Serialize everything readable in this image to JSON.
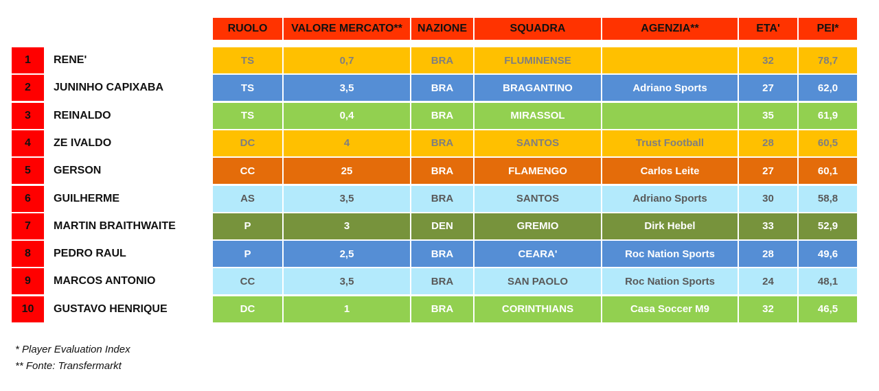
{
  "table": {
    "headers": [
      "RUOLO",
      "VALORE MERCATO**",
      "NAZIONE",
      "SQUADRA",
      "AGENZIA**",
      "ETA'",
      "PEI*"
    ],
    "rows": [
      {
        "rank": "1",
        "name": "RENE'",
        "ruolo": "TS",
        "valore": "0,7",
        "nazione": "BRA",
        "squadra": "FLUMINENSE",
        "agenzia": "",
        "eta": "32",
        "pei": "78,7",
        "bg": "#ffc000",
        "fg": "#7f7f7f"
      },
      {
        "rank": "2",
        "name": "JUNINHO CAPIXABA",
        "ruolo": "TS",
        "valore": "3,5",
        "nazione": "BRA",
        "squadra": "BRAGANTINO",
        "agenzia": "Adriano Sports",
        "eta": "27",
        "pei": "62,0",
        "bg": "#558ed5",
        "fg": "#ffffff"
      },
      {
        "rank": "3",
        "name": "REINALDO",
        "ruolo": "TS",
        "valore": "0,4",
        "nazione": "BRA",
        "squadra": "MIRASSOL",
        "agenzia": "",
        "eta": "35",
        "pei": "61,9",
        "bg": "#92d050",
        "fg": "#ffffff"
      },
      {
        "rank": "4",
        "name": "ZE IVALDO",
        "ruolo": "DC",
        "valore": "4",
        "nazione": "BRA",
        "squadra": "SANTOS",
        "agenzia": "Trust Football",
        "eta": "28",
        "pei": "60,5",
        "bg": "#ffc000",
        "fg": "#7f7f7f"
      },
      {
        "rank": "5",
        "name": "GERSON",
        "ruolo": "CC",
        "valore": "25",
        "nazione": "BRA",
        "squadra": "FLAMENGO",
        "agenzia": "Carlos Leite",
        "eta": "27",
        "pei": "60,1",
        "bg": "#e46c0a",
        "fg": "#ffffff"
      },
      {
        "rank": "6",
        "name": "GUILHERME",
        "ruolo": "AS",
        "valore": "3,5",
        "nazione": "BRA",
        "squadra": "SANTOS",
        "agenzia": "Adriano Sports",
        "eta": "30",
        "pei": "58,8",
        "bg": "#b3eafc",
        "fg": "#595959"
      },
      {
        "rank": "7",
        "name": "MARTIN BRAITHWAITE",
        "ruolo": "P",
        "valore": "3",
        "nazione": "DEN",
        "squadra": "GREMIO",
        "agenzia": "Dirk Hebel",
        "eta": "33",
        "pei": "52,9",
        "bg": "#77933c",
        "fg": "#ffffff"
      },
      {
        "rank": "8",
        "name": "PEDRO RAUL",
        "ruolo": "P",
        "valore": "2,5",
        "nazione": "BRA",
        "squadra": "CEARA'",
        "agenzia": "Roc Nation Sports",
        "eta": "28",
        "pei": "49,6",
        "bg": "#558ed5",
        "fg": "#ffffff"
      },
      {
        "rank": "9",
        "name": "MARCOS ANTONIO",
        "ruolo": "CC",
        "valore": "3,5",
        "nazione": "BRA",
        "squadra": "SAN PAOLO",
        "agenzia": "Roc Nation Sports",
        "eta": "24",
        "pei": "48,1",
        "bg": "#b3eafc",
        "fg": "#595959"
      },
      {
        "rank": "10",
        "name": "GUSTAVO HENRIQUE",
        "ruolo": "DC",
        "valore": "1",
        "nazione": "BRA",
        "squadra": "CORINTHIANS",
        "agenzia": "Casa Soccer M9",
        "eta": "32",
        "pei": "46,5",
        "bg": "#92d050",
        "fg": "#ffffff"
      }
    ]
  },
  "footnotes": [
    "* Player Evaluation Index",
    "** Fonte: Transfermarkt"
  ],
  "colors": {
    "header_bg": "#ff3300",
    "rank_bg": "#ff0000"
  }
}
